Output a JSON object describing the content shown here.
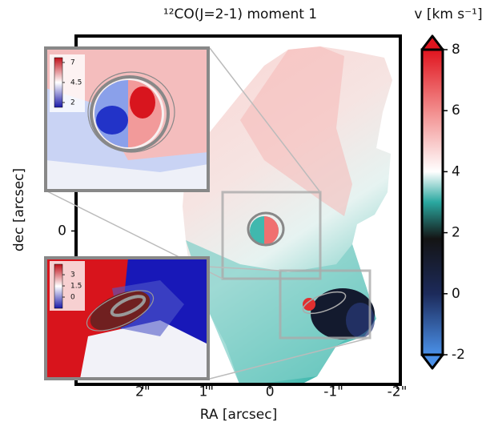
{
  "chart_data": {
    "type": "image",
    "title": "¹²CO(J=2-1) moment 1",
    "xlabel": "RA [arcsec]",
    "ylabel": "dec [arcsec]",
    "xlim": [
      3.05,
      -2.05
    ],
    "ylim": [
      -2.4,
      3.05
    ],
    "xticks": [
      {
        "value": 2,
        "label": "2\""
      },
      {
        "value": 1,
        "label": "1\""
      },
      0,
      {
        "value": -1,
        "label": "-1\""
      },
      {
        "value": -2,
        "label": "-2\""
      }
    ],
    "yticks": [
      0
    ],
    "colorbar": {
      "label": "v [km s⁻¹]",
      "lim": [
        -2,
        8
      ],
      "ticks": [
        -2,
        0,
        2,
        4,
        6,
        8
      ]
    },
    "insets": [
      {
        "colorbar_lim": [
          1.4,
          7.6
        ],
        "colorbar_ticks": [
          2,
          4.5,
          7
        ]
      },
      {
        "colorbar_lim": [
          -1.5,
          4.4
        ],
        "colorbar_ticks": [
          0,
          1.5,
          3
        ]
      }
    ]
  }
}
